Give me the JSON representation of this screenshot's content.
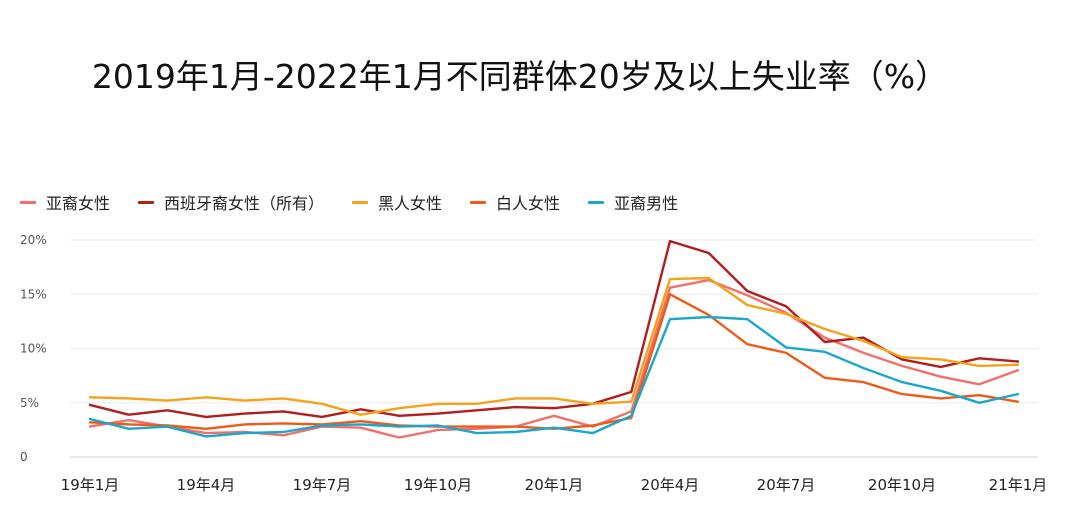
{
  "chart_data": {
    "type": "line",
    "title": "2019年1月-2022年1月不同群体20岁及以上失业率（%）",
    "xlabel": "",
    "ylabel": "",
    "ylim": [
      0,
      20
    ],
    "y_ticks": [
      "0",
      "5%",
      "10%",
      "15%",
      "20%"
    ],
    "y_tick_values": [
      0,
      5,
      10,
      15,
      20
    ],
    "x_tick_labels": [
      "19年1月",
      "19年4月",
      "19年7月",
      "19年10月",
      "20年1月",
      "20年4月",
      "20年7月",
      "20年10月",
      "21年1月"
    ],
    "x_tick_index": [
      0,
      3,
      6,
      9,
      12,
      15,
      18,
      21,
      24
    ],
    "grid": true,
    "legend_position": "top-left",
    "series": [
      {
        "name": "亚裔女性",
        "color": "#f0706a",
        "values": [
          2.8,
          3.4,
          2.8,
          2.2,
          2.3,
          2.0,
          2.8,
          2.7,
          1.8,
          2.5,
          2.6,
          2.8,
          3.8,
          2.8,
          4.2,
          15.6,
          16.3,
          14.9,
          13.3,
          11.0,
          9.6,
          8.4,
          7.4,
          6.7,
          8.0
        ]
      },
      {
        "name": "西班牙裔女性（所有）",
        "color": "#b01e1e",
        "values": [
          4.8,
          3.9,
          4.3,
          3.7,
          4.0,
          4.2,
          3.7,
          4.4,
          3.8,
          4.0,
          4.3,
          4.6,
          4.5,
          4.9,
          6.0,
          19.9,
          18.8,
          15.3,
          13.9,
          10.6,
          11.0,
          9.0,
          8.3,
          9.1,
          8.8
        ]
      },
      {
        "name": "黑人女性",
        "color": "#f5a21b",
        "values": [
          5.5,
          5.4,
          5.2,
          5.5,
          5.2,
          5.4,
          4.9,
          3.9,
          4.5,
          4.9,
          4.9,
          5.4,
          5.4,
          4.9,
          5.1,
          16.4,
          16.5,
          14.0,
          13.2,
          11.8,
          10.7,
          9.2,
          9.0,
          8.4,
          8.5
        ]
      },
      {
        "name": "白人女性",
        "color": "#ee5a18",
        "values": [
          3.2,
          3.0,
          2.9,
          2.6,
          3.0,
          3.1,
          3.0,
          3.3,
          2.9,
          2.8,
          2.8,
          2.8,
          2.6,
          2.9,
          3.6,
          15.0,
          13.1,
          10.4,
          9.6,
          7.3,
          6.9,
          5.8,
          5.4,
          5.7,
          5.1
        ]
      },
      {
        "name": "亚裔男性",
        "color": "#1aa7cc",
        "values": [
          3.5,
          2.6,
          2.8,
          1.9,
          2.2,
          2.3,
          2.9,
          3.0,
          2.8,
          2.9,
          2.2,
          2.3,
          2.7,
          2.2,
          3.8,
          12.7,
          12.9,
          12.7,
          10.1,
          9.7,
          8.2,
          6.9,
          6.1,
          5.0,
          5.8
        ]
      }
    ]
  }
}
